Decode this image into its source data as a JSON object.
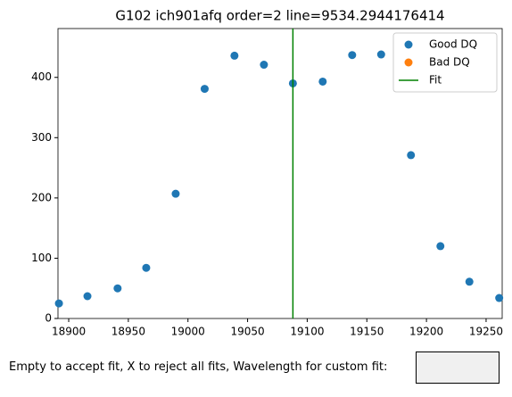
{
  "chart_data": {
    "type": "scatter",
    "title": "G102 ich901afq order=2 line=9534.2944176414",
    "series": [
      {
        "name": "Good DQ",
        "color": "#1f77b4",
        "x": [
          18891.8,
          18915.7,
          18941,
          18965,
          18989.7,
          19014,
          19039,
          19063.7,
          19088,
          19113,
          19137.7,
          19162,
          19187,
          19211.7,
          19236,
          19261
        ],
        "values": [
          25,
          37,
          50,
          84,
          207,
          381,
          436,
          421,
          390,
          393,
          437,
          438,
          271,
          120,
          61,
          34
        ]
      },
      {
        "name": "Bad DQ",
        "color": "#ff7f0e",
        "x": [],
        "values": []
      }
    ],
    "fit": {
      "name": "Fit",
      "color": "#008000",
      "x": 19088
    },
    "xlim": [
      18891,
      19263.5
    ],
    "xticks": [
      18900,
      18950,
      19000,
      19050,
      19100,
      19150,
      19200,
      19250
    ],
    "ylim": [
      0,
      481
    ],
    "yticks": [
      0,
      100,
      200,
      300,
      400
    ],
    "legend": "upper right"
  },
  "prompt": {
    "label": "Empty to accept fit, X to reject all fits, Wavelength for custom fit:"
  }
}
